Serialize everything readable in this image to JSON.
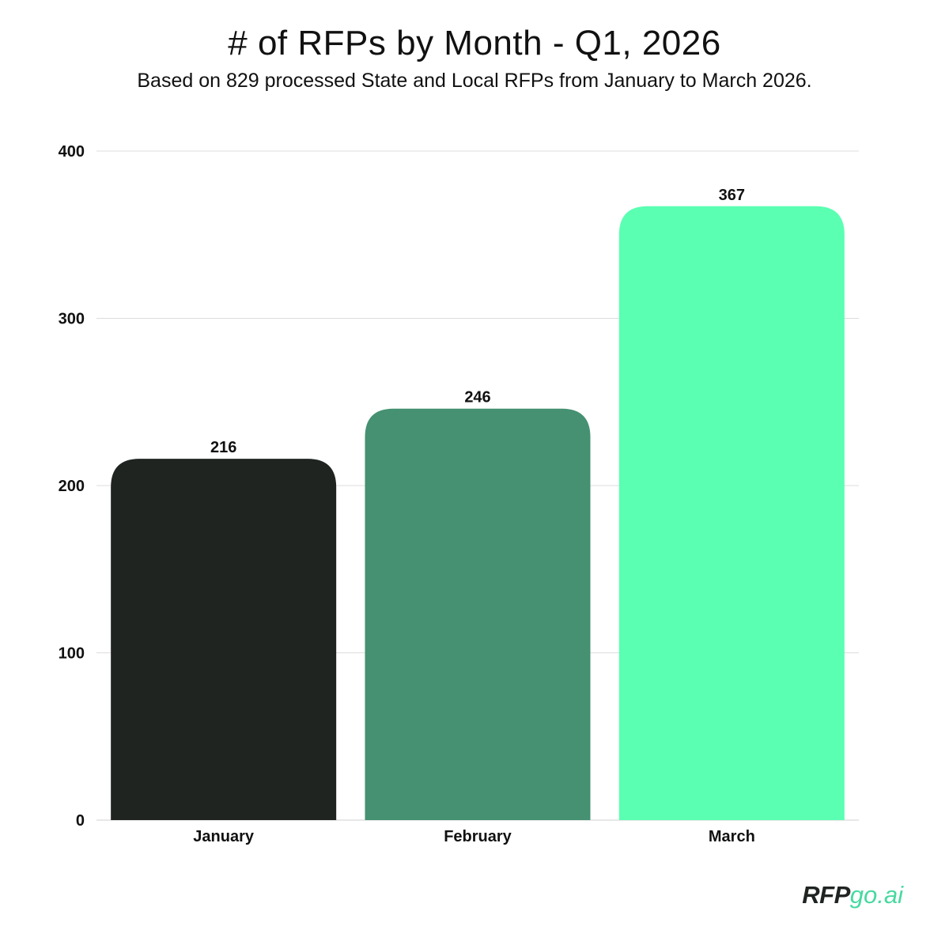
{
  "chart_data": {
    "type": "bar",
    "title": "# of RFPs by Month - Q1, 2026",
    "subtitle": "Based on 829 processed State and Local RFPs from January to March 2026.",
    "categories": [
      "January",
      "February",
      "March"
    ],
    "values": [
      216,
      246,
      367
    ],
    "data_labels": [
      "216",
      "246",
      "367"
    ],
    "bar_colors": [
      "#202421",
      "#459172",
      "#5affb2"
    ],
    "ylim": [
      0,
      400
    ],
    "yticks": [
      0,
      100,
      200,
      300,
      400
    ],
    "ytick_labels": [
      "0",
      "100",
      "200",
      "300",
      "400"
    ],
    "xlabel": "",
    "ylabel": "",
    "grid": true,
    "legend": "none"
  },
  "logo": {
    "text_primary": "RFP",
    "text_secondary": "go.ai",
    "color_primary": "#1f2421",
    "color_secondary": "#47d9a0"
  }
}
